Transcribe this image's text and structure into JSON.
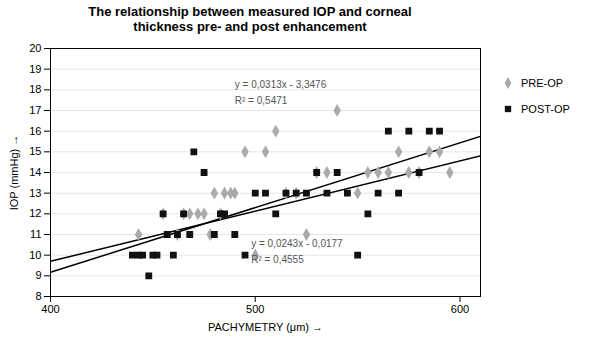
{
  "chart_data": {
    "type": "scatter",
    "title": "The relationship between measured IOP and corneal\nthickness pre- and post enhancement",
    "xlabel": "PACHYMETRY (μm)",
    "ylabel": "IOP (mmHg)",
    "xlim": [
      400,
      610
    ],
    "ylim": [
      8,
      20
    ],
    "xticks": [
      400,
      500,
      600
    ],
    "yticks": [
      8,
      9,
      10,
      11,
      12,
      13,
      14,
      15,
      16,
      17,
      18,
      19,
      20
    ],
    "grid": "y",
    "legend": "right",
    "series": [
      {
        "name": "PRE-OP",
        "color": "#aaaaaa",
        "marker": "diamond",
        "x": [
          443,
          455,
          462,
          465,
          468,
          472,
          475,
          478,
          480,
          483,
          485,
          488,
          490,
          495,
          500,
          505,
          510,
          515,
          520,
          525,
          530,
          535,
          540,
          550,
          555,
          560,
          565,
          570,
          575,
          580,
          585,
          590,
          595
        ],
        "values": [
          11,
          12,
          11,
          12,
          12,
          12,
          12,
          11,
          13,
          12,
          13,
          13,
          13,
          15,
          10,
          15,
          16,
          13,
          13,
          11,
          14,
          14,
          17,
          13,
          14,
          14,
          14,
          15,
          14,
          14,
          15,
          15,
          14
        ]
      },
      {
        "name": "POST-OP",
        "color": "#111111",
        "marker": "square",
        "x": [
          440,
          443,
          445,
          448,
          450,
          452,
          455,
          457,
          460,
          462,
          465,
          468,
          470,
          475,
          480,
          483,
          485,
          490,
          495,
          500,
          505,
          510,
          515,
          520,
          525,
          530,
          535,
          540,
          545,
          550,
          555,
          560,
          565,
          570,
          575,
          580,
          585,
          590
        ],
        "values": [
          10,
          10,
          10,
          9,
          10,
          10,
          12,
          11,
          10,
          11,
          12,
          11,
          15,
          14,
          11,
          12,
          12,
          11,
          10,
          13,
          13,
          12,
          13,
          13,
          13,
          14,
          13,
          14,
          13,
          10,
          12,
          13,
          16,
          13,
          16,
          14,
          16,
          16
        ]
      }
    ],
    "trend_lines": [
      {
        "x": [
          400,
          610
        ],
        "values": [
          9.1724,
          15.7454
        ],
        "color": "#000000"
      },
      {
        "x": [
          400,
          610
        ],
        "values": [
          9.7023,
          14.8053
        ],
        "color": "#000000"
      }
    ],
    "annotations": [
      {
        "text": "y = 0,0313x - 3,3476",
        "x": 490,
        "y": 18.1,
        "color": "#555555"
      },
      {
        "text": "R² = 0,5471",
        "x": 490,
        "y": 17.3,
        "color": "#555555"
      },
      {
        "text": "y = 0,0243x - 0,0177",
        "x": 498,
        "y": 10.4,
        "color": "#555555"
      },
      {
        "text": "R² = 0,4555",
        "x": 498,
        "y": 9.6,
        "color": "#555555"
      }
    ]
  }
}
